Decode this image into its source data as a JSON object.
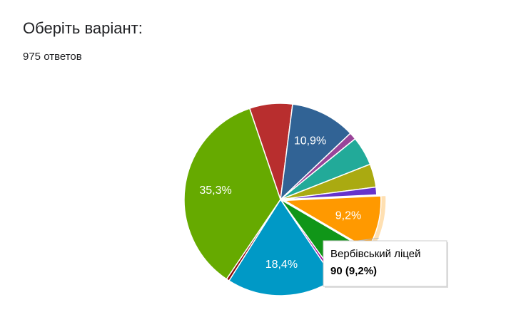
{
  "chart_data": {
    "type": "pie",
    "title": "Оберіть варіант:",
    "subtitle": "975 ответов",
    "categories": [
      null,
      null,
      null,
      null,
      null,
      null,
      "Вербівський ліцей",
      null,
      null,
      null,
      null,
      null
    ],
    "values": [
      7.2,
      10.9,
      1.2,
      4.9,
      3.9,
      1.3,
      9.2,
      6.6,
      0.5,
      18.4,
      0.5,
      35.3
    ],
    "value_labels": [
      null,
      "10,9%",
      null,
      null,
      null,
      null,
      "9,2%",
      null,
      null,
      "18,4%",
      null,
      "35,3%"
    ],
    "colors": [
      "#b82e2e",
      "#316395",
      "#994499",
      "#22aa99",
      "#aaaa11",
      "#6633cc",
      "#ff9900",
      "#109618",
      "#990099",
      "#0099c6",
      "#8b0707",
      "#66aa00"
    ],
    "highlighted": 6,
    "tooltip": "90 (9,2%)"
  }
}
